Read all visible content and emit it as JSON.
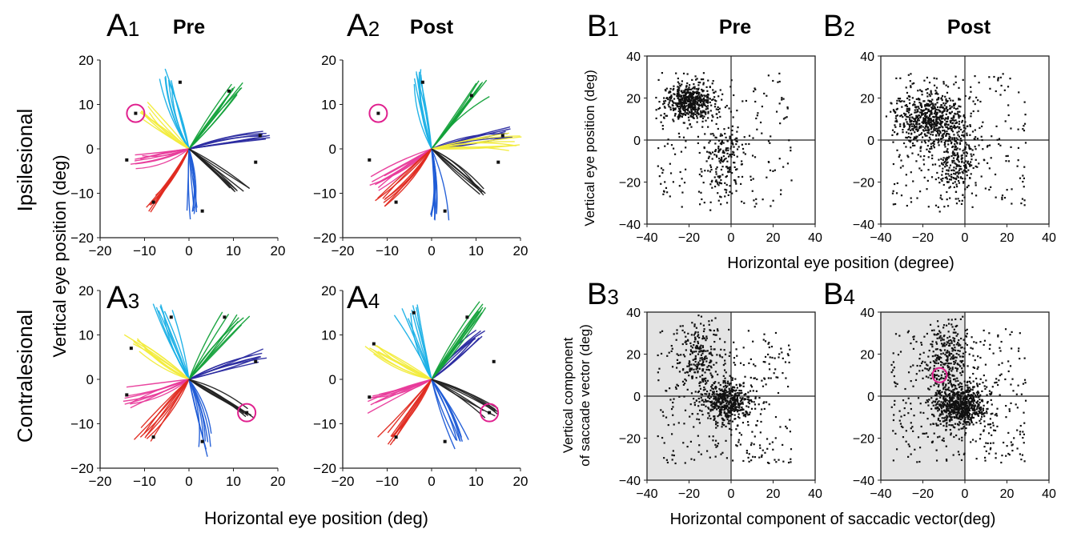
{
  "colors": {
    "magenta": "#e0208e",
    "axis": "#222222",
    "shade": "#e4e4e4",
    "dots": "#111111",
    "directions": [
      "#2a2aa0",
      "#13a13a",
      "#1ab0e6",
      "#f2ec3c",
      "#e83a9a",
      "#e02a20",
      "#1e5bd6",
      "#222222"
    ]
  },
  "row_labels": {
    "ipsilesional": "Ipsilesional",
    "contralesional": "Contralesional"
  },
  "axis_labels": {
    "a_y": "Vertical eye position (deg)",
    "a_x": "Horizontal eye position (deg)",
    "b_top_y": "Vertical eye position (deg)",
    "b_top_x": "Horizontal eye position (degree)",
    "b_bottom_y_line1": "Vertical component",
    "b_bottom_y_line2": "of saccade vector (deg)",
    "b_bottom_x": "Horizontal component  of saccadic vector(deg)"
  },
  "chart_data": [
    {
      "id": "A1",
      "panel_letter": "A",
      "panel_sub": "1",
      "title": "Pre",
      "type": "line",
      "xlim": [
        -20,
        20
      ],
      "ylim": [
        -20,
        20
      ],
      "xticks": [
        -20,
        -10,
        0,
        10,
        20
      ],
      "yticks": [
        -20,
        -10,
        0,
        10,
        20
      ],
      "targets": [
        [
          16,
          3
        ],
        [
          9,
          13
        ],
        [
          -2,
          15
        ],
        [
          -12,
          8
        ],
        [
          -14,
          -2.5
        ],
        [
          -8,
          -12
        ],
        [
          3,
          -14
        ],
        [
          15,
          -3
        ]
      ],
      "trajectory_endpoints": [
        [
          17,
          3
        ],
        [
          11,
          14
        ],
        [
          -5,
          16
        ],
        [
          -10,
          9
        ],
        [
          -12,
          -3
        ],
        [
          -9,
          -12
        ],
        [
          1,
          -15
        ],
        [
          11,
          -9
        ]
      ],
      "highlight": [
        -12,
        8
      ]
    },
    {
      "id": "A2",
      "panel_letter": "A",
      "panel_sub": "2",
      "title": "Post",
      "type": "line",
      "xlim": [
        -20,
        20
      ],
      "ylim": [
        -20,
        20
      ],
      "xticks": [
        -20,
        -10,
        0,
        10,
        20
      ],
      "yticks": [
        -20,
        -10,
        0,
        10,
        20
      ],
      "targets": [
        [
          16,
          3
        ],
        [
          9,
          12
        ],
        [
          -2,
          15
        ],
        [
          -12,
          8
        ],
        [
          -14,
          -2.5
        ],
        [
          -8,
          -12
        ],
        [
          3,
          -14
        ],
        [
          15,
          -3
        ]
      ],
      "trajectory_endpoints": [
        [
          17,
          3
        ],
        [
          11,
          14
        ],
        [
          -3,
          17
        ],
        [
          19,
          1
        ],
        [
          -13,
          -8
        ],
        [
          -11,
          -12
        ],
        [
          1,
          -15
        ],
        [
          11,
          -9
        ]
      ],
      "highlight": [
        -12,
        8
      ]
    },
    {
      "id": "A3",
      "panel_letter": "A",
      "panel_sub": "3",
      "title": "",
      "type": "line",
      "xlim": [
        -20,
        20
      ],
      "ylim": [
        -20,
        20
      ],
      "xticks": [
        -20,
        -10,
        0,
        10,
        20
      ],
      "yticks": [
        -20,
        -10,
        0,
        10,
        20
      ],
      "targets": [
        [
          15,
          4
        ],
        [
          8,
          14
        ],
        [
          -4,
          14
        ],
        [
          -13,
          7
        ],
        [
          -14,
          -3.5
        ],
        [
          -8,
          -13
        ],
        [
          3,
          -14
        ],
        [
          13,
          -7.5
        ]
      ],
      "trajectory_endpoints": [
        [
          16,
          5
        ],
        [
          11,
          14
        ],
        [
          -6,
          16
        ],
        [
          -12,
          8
        ],
        [
          -14,
          -4
        ],
        [
          -10,
          -13
        ],
        [
          4,
          -15
        ],
        [
          13,
          -7.5
        ]
      ],
      "highlight": [
        13,
        -7.5
      ]
    },
    {
      "id": "A4",
      "panel_letter": "A",
      "panel_sub": "4",
      "title": "",
      "type": "line",
      "xlim": [
        -20,
        20
      ],
      "ylim": [
        -20,
        20
      ],
      "xticks": [
        -20,
        -10,
        0,
        10,
        20
      ],
      "yticks": [
        -20,
        -10,
        0,
        10,
        20
      ],
      "targets": [
        [
          14,
          4
        ],
        [
          8,
          14
        ],
        [
          -4,
          15
        ],
        [
          -13,
          8
        ],
        [
          -14,
          -4
        ],
        [
          -8,
          -13
        ],
        [
          3,
          -14
        ],
        [
          13,
          -7.5
        ]
      ],
      "trajectory_endpoints": [
        [
          11,
          10
        ],
        [
          11,
          16
        ],
        [
          -5,
          16
        ],
        [
          -13,
          7
        ],
        [
          -14,
          -5
        ],
        [
          -10,
          -13
        ],
        [
          6,
          -14
        ],
        [
          13,
          -7.5
        ]
      ],
      "highlight": [
        13,
        -7.5
      ]
    },
    {
      "id": "B1",
      "panel_letter": "B",
      "panel_sub": "1",
      "title": "Pre",
      "type": "scatter",
      "xlim": [
        -40,
        40
      ],
      "ylim": [
        -40,
        40
      ],
      "xticks": [
        -40,
        -20,
        0,
        20,
        40
      ],
      "yticks": [
        -40,
        -20,
        0,
        20,
        40
      ],
      "description_points": {
        "main_cluster_center": [
          -20,
          18
        ],
        "secondary_cluster_center": [
          -3,
          -8
        ],
        "n_points": 900
      }
    },
    {
      "id": "B2",
      "panel_letter": "B",
      "panel_sub": "2",
      "title": "Post",
      "type": "scatter",
      "xlim": [
        -40,
        40
      ],
      "ylim": [
        -40,
        40
      ],
      "xticks": [
        -40,
        -20,
        0,
        20,
        40
      ],
      "yticks": [
        -40,
        -20,
        0,
        20,
        40
      ],
      "description_points": {
        "main_cluster_center": [
          -17,
          10
        ],
        "secondary_cluster_center": [
          -4,
          -10
        ],
        "n_points": 1100
      }
    },
    {
      "id": "B3",
      "panel_letter": "B",
      "panel_sub": "3",
      "title": "",
      "type": "scatter",
      "xlim": [
        -40,
        40
      ],
      "ylim": [
        -40,
        40
      ],
      "xticks": [
        -40,
        -20,
        0,
        20,
        40
      ],
      "yticks": [
        -40,
        -20,
        0,
        20,
        40
      ],
      "shaded_region": {
        "x": [
          -40,
          0
        ],
        "y": [
          -40,
          40
        ]
      },
      "description_points": {
        "main_cluster_center": [
          -2,
          -3
        ],
        "upper_cluster_center": [
          -15,
          20
        ],
        "n_points": 1000
      }
    },
    {
      "id": "B4",
      "panel_letter": "B",
      "panel_sub": "4",
      "title": "",
      "type": "scatter",
      "xlim": [
        -40,
        40
      ],
      "ylim": [
        -40,
        40
      ],
      "xticks": [
        -40,
        -20,
        0,
        20,
        40
      ],
      "yticks": [
        -40,
        -20,
        0,
        20,
        40
      ],
      "shaded_region": {
        "x": [
          -40,
          0
        ],
        "y": [
          -40,
          40
        ]
      },
      "highlight": [
        -12,
        10
      ],
      "description_points": {
        "main_cluster_center": [
          -2,
          -5
        ],
        "upper_cluster_center": [
          -8,
          18
        ],
        "n_points": 1300
      }
    }
  ]
}
